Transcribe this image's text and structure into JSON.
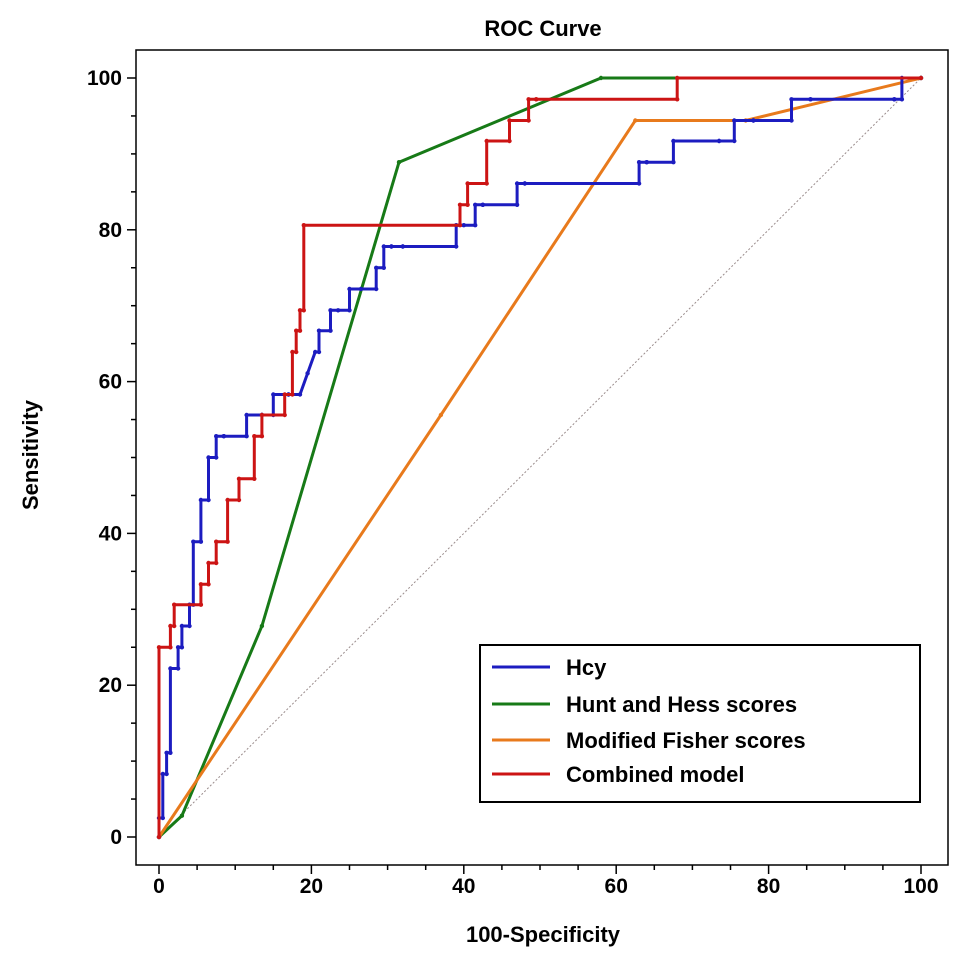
{
  "chart_data": {
    "type": "line",
    "title": "ROC Curve",
    "xlabel": "100-Specificity",
    "ylabel": "Sensitivity",
    "xlim": [
      0,
      100
    ],
    "ylim": [
      0,
      100
    ],
    "xticks": [
      0,
      20,
      40,
      60,
      80,
      100
    ],
    "yticks": [
      0,
      20,
      40,
      60,
      80,
      100
    ],
    "xticks_minor_step": 5,
    "yticks_minor_step": 5,
    "grid": false,
    "legend_position": "bottom-right",
    "reference_line": {
      "name": "Reference",
      "x": [
        0,
        100
      ],
      "y": [
        0,
        100
      ],
      "color": "#9a8c8c"
    },
    "series": [
      {
        "name": "Hcy",
        "color": "#1c1cc0",
        "x": [
          0,
          0,
          0.5,
          0.5,
          1,
          1,
          1.5,
          1.5,
          2.5,
          2.5,
          3,
          3,
          4,
          4,
          4.5,
          4.5,
          5.5,
          5.5,
          6.5,
          6.5,
          7.5,
          7.5,
          8.5,
          8.5,
          11.5,
          11.5,
          13.5,
          13.5,
          15,
          15,
          17,
          17,
          18.5,
          19.5,
          20.5,
          21,
          21,
          22.5,
          22.5,
          23.5,
          25,
          25,
          26.5,
          28.5,
          28.5,
          29.5,
          29.5,
          30.5,
          30.5,
          32,
          32,
          39,
          39,
          40,
          41.5,
          41.5,
          42.5,
          42.5,
          47,
          47,
          48,
          48,
          63,
          63,
          64,
          64,
          67.5,
          67.5,
          73.5,
          73.5,
          75.5,
          75.5,
          78,
          78,
          83,
          83,
          85.5,
          85.5,
          96.5,
          96.5,
          97.5,
          97.5,
          100
        ],
        "y": [
          0,
          2.5,
          2.5,
          8.3,
          8.3,
          11.1,
          11.1,
          22.2,
          22.2,
          25,
          25,
          27.8,
          27.8,
          30.6,
          30.6,
          38.9,
          38.9,
          44.4,
          44.4,
          50,
          50,
          52.8,
          52.8,
          52.8,
          52.8,
          55.6,
          55.6,
          55.6,
          55.6,
          58.3,
          58.3,
          58.3,
          58.3,
          61.1,
          63.9,
          63.9,
          66.7,
          66.7,
          69.4,
          69.4,
          69.4,
          72.2,
          72.2,
          72.2,
          75,
          75,
          77.8,
          77.8,
          77.8,
          77.8,
          77.8,
          77.8,
          80.6,
          80.6,
          80.6,
          83.3,
          83.3,
          83.3,
          83.3,
          86.1,
          86.1,
          86.1,
          86.1,
          88.9,
          88.9,
          88.9,
          88.9,
          91.7,
          91.7,
          91.7,
          91.7,
          94.4,
          94.4,
          94.4,
          94.4,
          97.2,
          97.2,
          97.2,
          97.2,
          97.2,
          97.2,
          100,
          100
        ]
      },
      {
        "name": "Hunt and Hess scores",
        "color": "#177a17",
        "x": [
          0,
          3,
          13.5,
          31.5,
          58,
          100
        ],
        "y": [
          0,
          2.8,
          27.8,
          88.9,
          100,
          100
        ]
      },
      {
        "name": "Modified Fisher scores",
        "color": "#e87a1c",
        "x": [
          0,
          37,
          62.5,
          77,
          100
        ],
        "y": [
          0,
          55.6,
          94.4,
          94.4,
          100
        ]
      },
      {
        "name": "Combined model",
        "color": "#cc1414",
        "x": [
          0,
          0,
          1.5,
          1.5,
          2,
          2,
          5.5,
          5.5,
          6.5,
          6.5,
          7.5,
          7.5,
          9,
          9,
          10.5,
          10.5,
          12.5,
          12.5,
          13.5,
          13.5,
          16.5,
          16.5,
          17.5,
          17.5,
          18,
          18,
          18.5,
          18.5,
          19,
          19,
          39.5,
          39.5,
          40.5,
          40.5,
          43,
          43,
          46,
          46,
          48.5,
          48.5,
          49.5,
          49.5,
          68,
          68,
          100
        ],
        "y": [
          0,
          25,
          25,
          27.8,
          27.8,
          30.6,
          30.6,
          33.3,
          33.3,
          36.1,
          36.1,
          38.9,
          38.9,
          44.4,
          44.4,
          47.2,
          47.2,
          52.8,
          52.8,
          55.6,
          55.6,
          58.3,
          58.3,
          63.9,
          63.9,
          66.7,
          66.7,
          69.4,
          69.4,
          80.6,
          80.6,
          83.3,
          83.3,
          86.1,
          86.1,
          91.7,
          91.7,
          94.4,
          94.4,
          97.2,
          97.2,
          97.2,
          97.2,
          100,
          100
        ]
      }
    ]
  }
}
